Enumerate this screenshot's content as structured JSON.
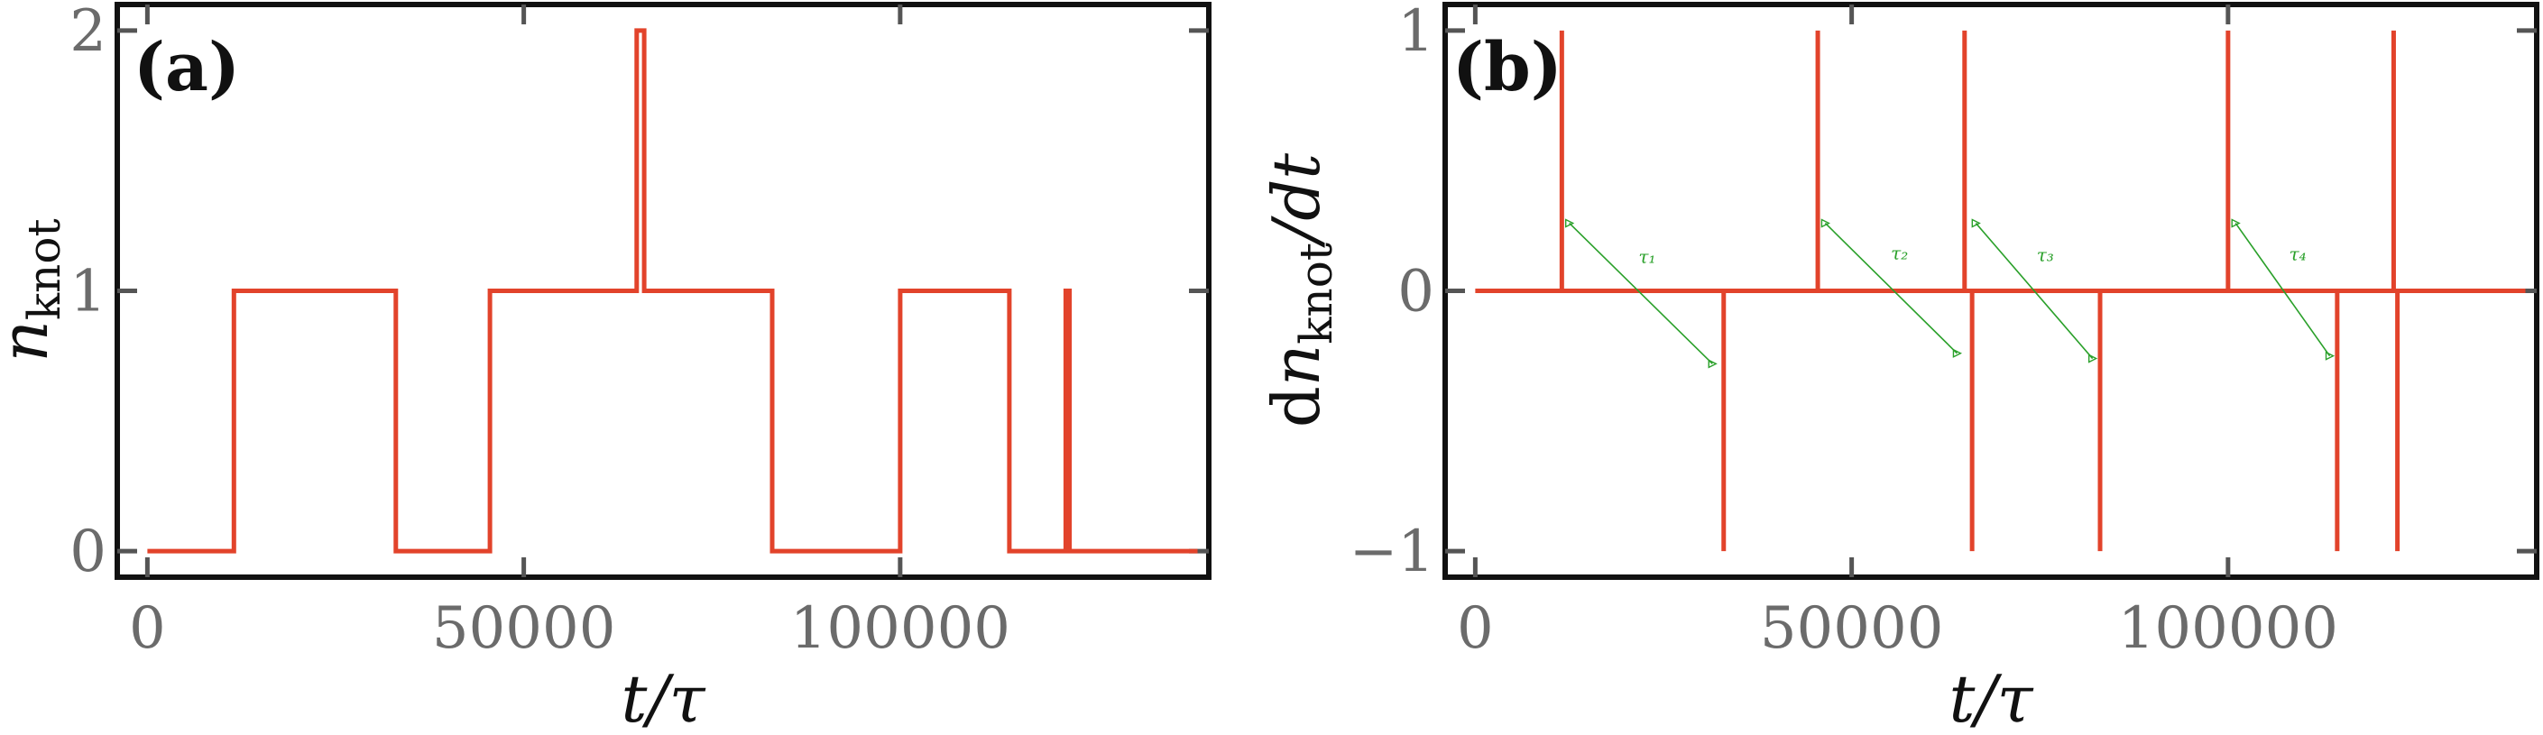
{
  "colors": {
    "series": "#e2432b",
    "annotation": "#2aa02a",
    "frame": "#111111",
    "tick_text": "#6b6b6b"
  },
  "chart_data": [
    {
      "type": "line",
      "panel": "(a)",
      "xlabel": "t/τ",
      "ylabel": "n_knot",
      "ylabel_main": "n",
      "ylabel_sub": "knot",
      "xlim": [
        -4000,
        141000
      ],
      "ylim": [
        -0.1,
        2.1
      ],
      "xticks": [
        0,
        50000,
        100000
      ],
      "xticklabels": [
        "0",
        "50000",
        "100000"
      ],
      "yticks": [
        0,
        1,
        2
      ],
      "yticklabels": [
        "0",
        "1",
        "2"
      ],
      "series": [
        {
          "x": [
            0,
            11500,
            11500,
            33000,
            33000,
            45500,
            45500,
            65000,
            65000,
            66000,
            66000,
            83000,
            83000,
            100000,
            100000,
            114500,
            114500,
            122000,
            122000,
            122500,
            122500,
            139500
          ],
          "y": [
            0,
            0,
            1,
            1,
            0,
            0,
            1,
            1,
            2,
            2,
            1,
            1,
            0,
            0,
            1,
            1,
            0,
            0,
            1,
            1,
            0,
            0
          ]
        }
      ]
    },
    {
      "type": "line",
      "panel": "(b)",
      "xlabel": "t/τ",
      "ylabel": "dn_knot/dt",
      "ylabel_pre": "d",
      "ylabel_main": "n",
      "ylabel_sub": "knot",
      "ylabel_post": "/dt",
      "xlim": [
        -4000,
        141000
      ],
      "ylim": [
        -1.1,
        1.1
      ],
      "xticks": [
        0,
        50000,
        100000
      ],
      "xticklabels": [
        "0",
        "50000",
        "100000"
      ],
      "yticks": [
        -1,
        0,
        1
      ],
      "yticklabels": [
        "−1",
        "0",
        "1"
      ],
      "series": [
        {
          "spikes_x": [
            11500,
            33000,
            45500,
            65000,
            66000,
            83000,
            100000,
            114500,
            122000,
            122500
          ],
          "spikes_y": [
            1,
            -1,
            1,
            1,
            -1,
            -1,
            1,
            -1,
            1,
            -1
          ],
          "x_range": [
            0,
            139500
          ]
        }
      ],
      "annotations": [
        {
          "label": "τ₁",
          "x_start": 12500,
          "y_start": 0.26,
          "x_end": 31500,
          "y_end": -0.28
        },
        {
          "label": "τ₂",
          "x_start": 46500,
          "y_start": 0.26,
          "x_end": 64000,
          "y_end": -0.24
        },
        {
          "label": "τ₃",
          "x_start": 66500,
          "y_start": 0.26,
          "x_end": 82000,
          "y_end": -0.26
        },
        {
          "label": "τ₄",
          "x_start": 101000,
          "y_start": 0.26,
          "x_end": 113500,
          "y_end": -0.25
        }
      ]
    }
  ]
}
